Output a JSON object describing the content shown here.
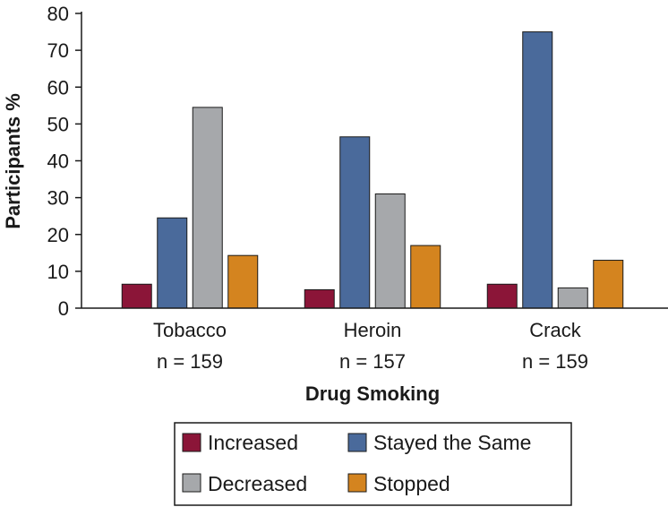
{
  "chart_data": {
    "type": "bar",
    "categories": [
      "Tobacco",
      "Heroin",
      "Crack"
    ],
    "category_n": [
      "n = 159",
      "n = 157",
      "n = 159"
    ],
    "series": [
      {
        "name": "Increased",
        "color": "#8b1538",
        "values": [
          6.5,
          5,
          6.5
        ]
      },
      {
        "name": "Stayed the Same",
        "color": "#4a6a9b",
        "values": [
          24.5,
          46.5,
          75
        ]
      },
      {
        "name": "Decreased",
        "color": "#a6a8ab",
        "values": [
          54.5,
          31,
          5.5
        ]
      },
      {
        "name": "Stopped",
        "color": "#d4841f",
        "values": [
          14.3,
          17,
          13
        ]
      }
    ],
    "title": "",
    "xlabel": "Drug Smoking",
    "ylabel": "Participants %",
    "ylim": [
      0,
      80
    ],
    "yticks": [
      0,
      10,
      20,
      30,
      40,
      50,
      60,
      70,
      80
    ],
    "grid": false,
    "legend_position": "bottom"
  }
}
